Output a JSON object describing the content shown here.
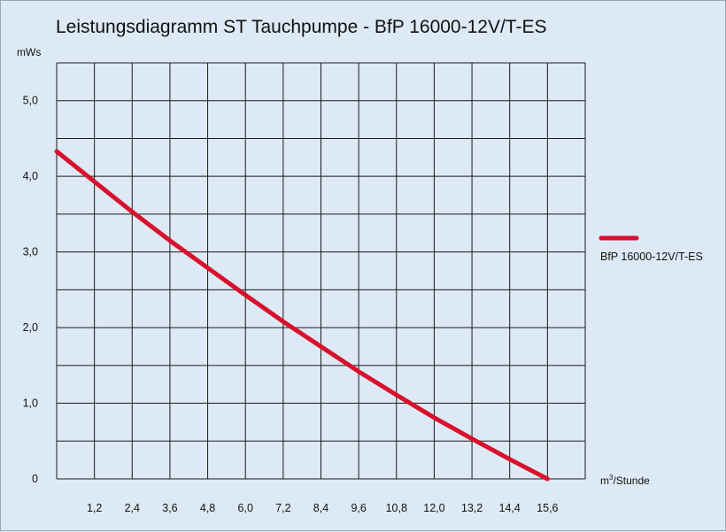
{
  "chart_data": {
    "type": "line",
    "title": "Leistungsdiagramm ST Tauchpumpe - BfP 16000-12V/T-ES",
    "ylabel": "mWs",
    "xlabel_base": "m",
    "xlabel_sup": "3",
    "xlabel_rest": "/Stunde",
    "x_ticks": [
      "1,2",
      "2,4",
      "3,6",
      "4,8",
      "6,0",
      "7,2",
      "8,4",
      "9,6",
      "10,8",
      "12,0",
      "13,2",
      "14,4",
      "15,6"
    ],
    "y_ticks": [
      "0",
      "1,0",
      "2,0",
      "3,0",
      "4,0",
      "5,0"
    ],
    "xlim": [
      0,
      16.8
    ],
    "ylim": [
      0,
      5.5
    ],
    "grid": true,
    "legend_position": "right",
    "series": [
      {
        "name": "BfP 16000-12V/T-ES",
        "color": "#d8112d",
        "x": [
          0,
          1.2,
          2.4,
          3.6,
          4.8,
          6.0,
          7.2,
          8.4,
          9.6,
          10.8,
          12.0,
          13.2,
          14.4,
          15.6
        ],
        "y": [
          4.33,
          3.93,
          3.53,
          3.15,
          2.79,
          2.43,
          2.08,
          1.75,
          1.42,
          1.11,
          0.81,
          0.53,
          0.26,
          0
        ]
      }
    ]
  }
}
